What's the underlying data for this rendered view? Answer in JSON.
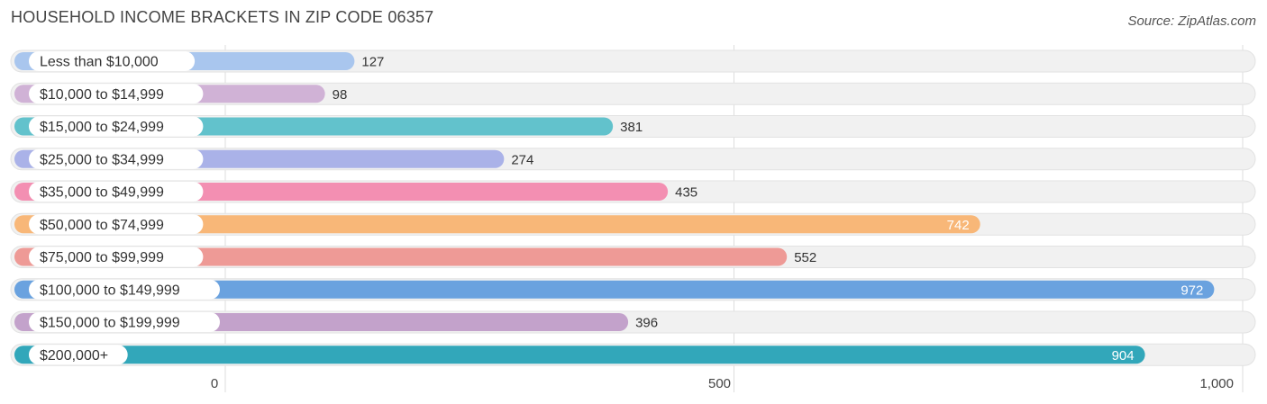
{
  "title": "HOUSEHOLD INCOME BRACKETS IN ZIP CODE 06357",
  "source": "Source: ZipAtlas.com",
  "chart_data": {
    "type": "bar",
    "orientation": "horizontal",
    "title": "HOUSEHOLD INCOME BRACKETS IN ZIP CODE 06357",
    "categories": [
      "Less than $10,000",
      "$10,000 to $14,999",
      "$15,000 to $24,999",
      "$25,000 to $34,999",
      "$35,000 to $49,999",
      "$50,000 to $74,999",
      "$75,000 to $99,999",
      "$100,000 to $149,999",
      "$150,000 to $199,999",
      "$200,000+"
    ],
    "values": [
      127,
      98,
      381,
      274,
      435,
      742,
      552,
      972,
      396,
      904
    ],
    "colors": [
      "#a9c6ee",
      "#d0b2d6",
      "#62c2cc",
      "#aab2e8",
      "#f38fb2",
      "#f8b778",
      "#ee9a96",
      "#6aa2df",
      "#c3a2cb",
      "#32a7ba"
    ],
    "value_labels_inside": [
      false,
      false,
      false,
      false,
      false,
      true,
      false,
      true,
      false,
      true
    ],
    "xlim": [
      0,
      1000
    ],
    "xticks": [
      0,
      500,
      1000
    ],
    "xtick_labels": [
      "0",
      "500",
      "1,000"
    ],
    "grid": true,
    "legend": "none"
  }
}
